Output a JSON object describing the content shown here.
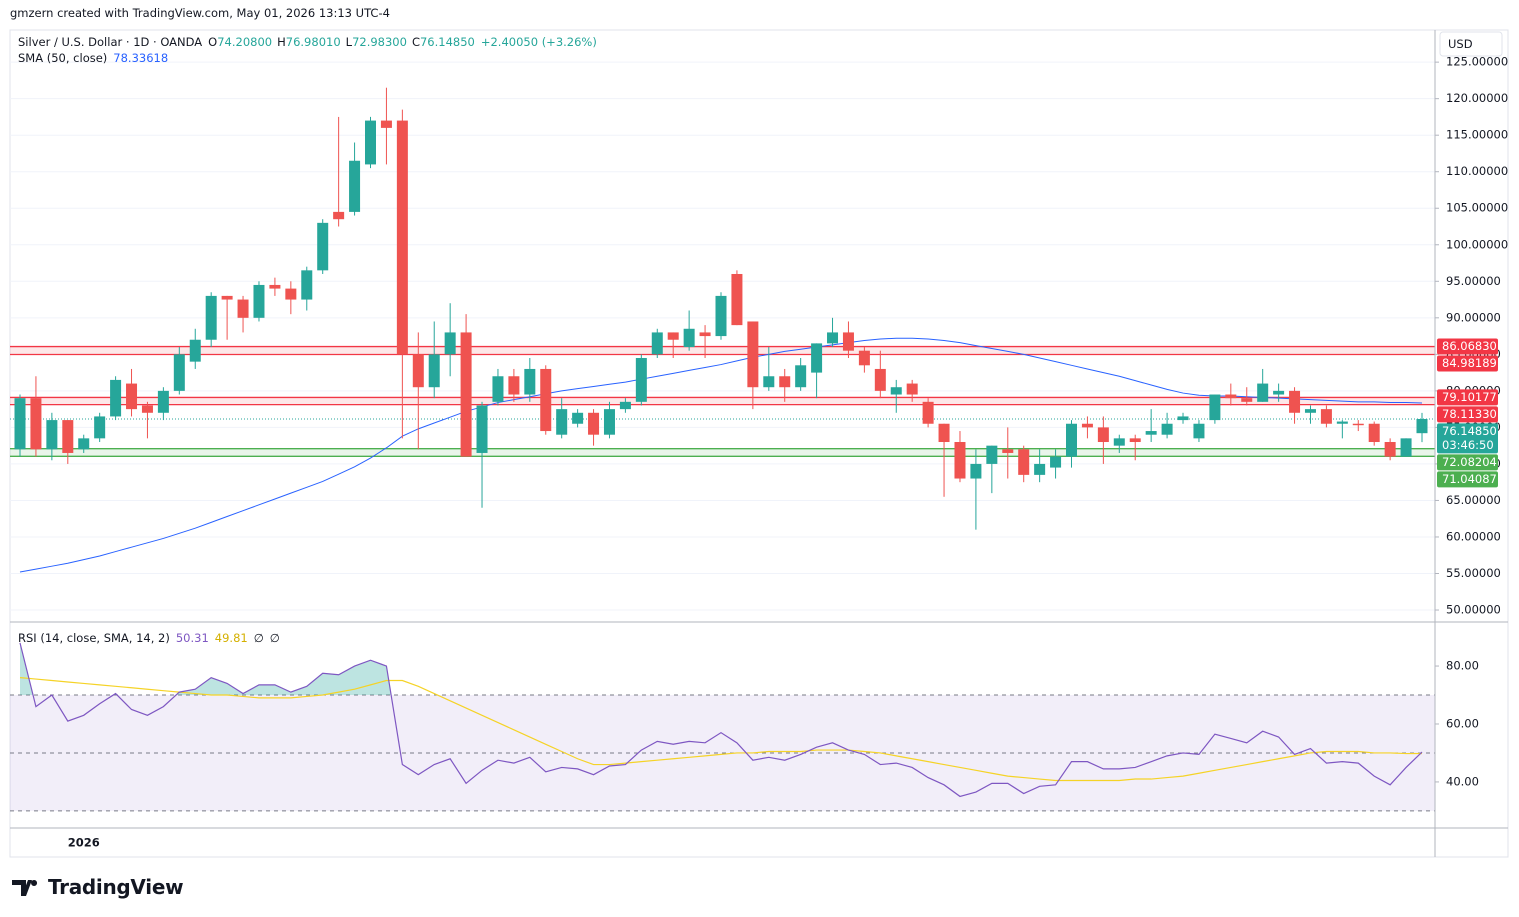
{
  "header": "gmzern created with TradingView.com, May 01, 2026 13:13 UTC-4",
  "footer": {
    "brand": "TradingView"
  },
  "chart_data": [
    {
      "type": "candlestick",
      "title": "Silver / U.S. Dollar · 1D · OANDA",
      "ohlc_legend": [
        {
          "key": "O",
          "value": "74.20800"
        },
        {
          "key": "H",
          "value": "76.98010"
        },
        {
          "key": "L",
          "value": "72.98300"
        },
        {
          "key": "C",
          "value": "76.14850"
        }
      ],
      "change": "+2.40050 (+3.26%)",
      "currency": "USD",
      "categories": [
        null,
        null,
        null,
        null,
        "2026",
        null,
        null,
        null,
        null,
        null,
        null,
        null,
        null,
        null,
        null,
        null,
        null,
        null,
        null,
        null,
        null,
        null,
        null,
        null,
        null,
        null,
        null,
        null,
        null,
        null,
        null,
        null,
        null,
        null,
        null,
        null,
        null,
        null,
        null,
        null,
        null,
        null,
        null,
        null,
        null,
        null,
        null,
        null,
        null,
        null,
        null,
        null,
        null,
        null,
        null,
        null,
        null,
        null,
        null,
        null,
        null,
        null,
        null,
        null,
        null,
        null,
        null,
        null,
        null,
        null,
        null,
        null,
        null,
        null,
        null,
        null,
        null,
        null,
        null,
        null,
        null,
        null,
        null,
        null,
        null,
        null,
        null,
        null,
        null
      ],
      "up_color": "#26a69a",
      "down_color": "#ef5350",
      "ohlc": {
        "open": [
          72,
          79,
          72,
          76,
          72,
          73.5,
          76.5,
          81,
          78,
          77,
          80,
          84,
          87,
          93,
          92.5,
          90,
          94.5,
          94,
          92.5,
          96.5,
          104.5,
          104.5,
          111,
          117,
          117,
          85,
          80.5,
          85,
          88,
          71.5,
          78.5,
          82,
          79.5,
          83,
          74,
          75.5,
          77,
          74,
          77.5,
          78.5,
          85,
          88,
          86,
          88,
          87.5,
          96,
          89.5,
          80.5,
          82,
          80.5,
          82.5,
          86.5,
          88,
          85.5,
          83,
          79.5,
          81,
          78.5,
          75.5,
          73,
          68,
          70,
          72,
          72,
          68.5,
          69.5,
          71,
          75.5,
          75,
          72.5,
          73.5,
          74,
          74,
          76,
          73.5,
          76,
          79.5,
          79,
          78.5,
          79.5,
          80,
          77,
          77.5,
          75.5,
          75.5,
          75.5,
          73,
          71,
          74.208
        ],
        "high": [
          79.5,
          82,
          77,
          76,
          74,
          77,
          82,
          83,
          78.5,
          80.5,
          86,
          88.5,
          93.5,
          93,
          93,
          95,
          95.5,
          95,
          97,
          103.5,
          117.5,
          114,
          117.5,
          121.5,
          118.5,
          88,
          89.5,
          92,
          90.5,
          78.5,
          83,
          83,
          84.5,
          83.5,
          79,
          77.5,
          77.5,
          78.5,
          79,
          85,
          88.5,
          88,
          91,
          89,
          93.5,
          96.5,
          89.5,
          86,
          83,
          84.5,
          86.5,
          90,
          89.5,
          86,
          85.5,
          81.5,
          81.5,
          79,
          75.5,
          74.5,
          72,
          72.5,
          75,
          72.5,
          72,
          72,
          76,
          76.5,
          76.5,
          74,
          74,
          77.5,
          77,
          77,
          76,
          79.5,
          81,
          80.5,
          83,
          81,
          80.5,
          78,
          78,
          76,
          76,
          75.8,
          73.5,
          73.5,
          76.9801
        ],
        "low": [
          71,
          71,
          70.5,
          70,
          71.5,
          73,
          76,
          76.5,
          73.5,
          76,
          79.5,
          83,
          86,
          87,
          88,
          89.5,
          93,
          90.5,
          91,
          96,
          102.5,
          104,
          110.5,
          111,
          73.5,
          72,
          79,
          82,
          71,
          64,
          78,
          78.5,
          78.5,
          74,
          73.5,
          75,
          72.5,
          73.5,
          77,
          78,
          84.5,
          84.5,
          85.5,
          84.5,
          87,
          89,
          77.5,
          80,
          78.5,
          80,
          79,
          86,
          84.5,
          82.5,
          79,
          77,
          78.5,
          75,
          65.5,
          67.5,
          61,
          66,
          68,
          67.5,
          67.5,
          68,
          69.5,
          73.5,
          70,
          71.5,
          70.5,
          73,
          73.5,
          75.5,
          73,
          75.5,
          78,
          78,
          78.5,
          78.5,
          75.5,
          75.5,
          75,
          73.5,
          74.5,
          72.5,
          70.5,
          71,
          72.983
        ],
        "close": [
          79,
          72,
          76,
          71.5,
          73.5,
          76.5,
          81.5,
          77.5,
          77,
          80,
          85,
          87,
          93,
          92.5,
          90,
          94.5,
          94,
          92.5,
          96.5,
          103,
          103.5,
          111.5,
          117,
          116,
          85,
          80.5,
          85,
          88,
          71,
          78,
          82,
          79.5,
          83,
          74.5,
          77.5,
          77,
          74,
          77.5,
          78.5,
          84.5,
          88,
          87,
          88.5,
          87.5,
          93,
          89,
          80.5,
          82,
          80.5,
          83.5,
          86.5,
          88,
          85.5,
          83.5,
          80,
          80.5,
          79.5,
          75.5,
          73,
          68,
          70,
          72.5,
          71.5,
          68.5,
          70,
          71,
          75.5,
          75,
          73,
          73.5,
          73,
          74.5,
          75.5,
          76.5,
          75.5,
          79.5,
          79,
          78.5,
          81,
          80,
          77,
          77.5,
          75.5,
          75.8,
          75.3,
          73,
          71,
          73.5,
          76.1485
        ]
      },
      "overlays": [
        {
          "name": "SMA (50, close)",
          "color": "#2962ff",
          "last_label": "78.33618",
          "values": [
            55.2,
            55.6,
            56,
            56.4,
            56.9,
            57.4,
            58,
            58.6,
            59.2,
            59.8,
            60.5,
            61.2,
            62,
            62.8,
            63.6,
            64.4,
            65.2,
            66,
            66.8,
            67.6,
            68.6,
            69.6,
            70.8,
            72.2,
            73.8,
            74.8,
            75.6,
            76.4,
            77.2,
            77.8,
            78.4,
            78.8,
            79.2,
            79.6,
            80,
            80.3,
            80.6,
            80.9,
            81.2,
            81.6,
            82,
            82.4,
            82.8,
            83.2,
            83.6,
            84.1,
            84.6,
            85,
            85.4,
            85.7,
            86,
            86.3,
            86.6,
            86.9,
            87.1,
            87.2,
            87.2,
            87.1,
            86.9,
            86.6,
            86.2,
            85.8,
            85.4,
            85,
            84.5,
            84,
            83.5,
            83,
            82.5,
            82,
            81.4,
            80.8,
            80.2,
            79.7,
            79.4,
            79.3,
            79.3,
            79.2,
            79.1,
            79,
            78.9,
            78.8,
            78.7,
            78.6,
            78.5,
            78.5,
            78.4,
            78.4,
            78.34
          ]
        }
      ],
      "zones": [
        {
          "color": "#f23645",
          "bounds": [
            {
              "value": 86.0683,
              "label": "86.06830"
            },
            {
              "value": 84.98189,
              "label": "84.98189"
            }
          ]
        },
        {
          "color": "#f23645",
          "bounds": [
            {
              "value": 79.10177,
              "label": "79.10177"
            },
            {
              "value": 78.1133,
              "label": "78.11330"
            }
          ]
        },
        {
          "color": "#4caf50",
          "bounds": [
            {
              "value": 72.08204,
              "label": "72.08204"
            },
            {
              "value": 71.04087,
              "label": "71.04087"
            }
          ]
        }
      ],
      "last_price": {
        "value": 76.1485,
        "label": "76.14850",
        "countdown": "03:46:50",
        "color": "#26a69a"
      },
      "ylim": [
        48.36,
        129.4
      ],
      "yticks": [
        {
          "value": 50,
          "label": "50.00000"
        },
        {
          "value": 55,
          "label": "55.00000"
        },
        {
          "value": 60,
          "label": "60.00000"
        },
        {
          "value": 65,
          "label": "65.00000"
        },
        {
          "value": 70,
          "label": "70.00000"
        },
        {
          "value": 75,
          "label": "75.00000"
        },
        {
          "value": 80,
          "label": "80.00000"
        },
        {
          "value": 85,
          "label": "85.00000"
        },
        {
          "value": 90,
          "label": "90.00000"
        },
        {
          "value": 95,
          "label": "95.00000"
        },
        {
          "value": 100,
          "label": "100.00000"
        },
        {
          "value": 105,
          "label": "105.00000"
        },
        {
          "value": 110,
          "label": "110.00000"
        },
        {
          "value": 115,
          "label": "115.00000"
        },
        {
          "value": 120,
          "label": "120.00000"
        },
        {
          "value": 125,
          "label": "125.00000"
        }
      ],
      "grid": true
    },
    {
      "type": "line",
      "title": "RSI (14, close, SMA, 14, 2)",
      "legend_values": [
        "50.31",
        "49.81",
        "∅",
        "∅"
      ],
      "series": [
        {
          "name": "RSI",
          "color": "#7e57c2",
          "values": [
            88,
            66,
            70,
            61,
            63,
            67,
            70.5,
            65,
            63,
            66,
            71,
            72,
            76,
            74,
            70.5,
            73.5,
            73.5,
            71,
            73,
            77.5,
            77,
            80,
            82,
            80,
            46,
            42.5,
            46,
            48,
            39.5,
            44,
            47.5,
            46.5,
            48.5,
            43.5,
            45,
            44.5,
            42.5,
            45.5,
            46,
            51,
            54,
            53,
            54,
            53.5,
            57,
            53.5,
            47.5,
            48.5,
            47.5,
            49.5,
            52,
            53.5,
            51,
            49.5,
            46,
            46.5,
            45,
            41.5,
            39,
            35,
            36.5,
            39.5,
            39.5,
            36,
            38.5,
            39,
            47,
            47,
            44.5,
            44.5,
            45,
            47,
            49,
            50,
            49.5,
            56.5,
            55,
            53.5,
            57.5,
            55.5,
            49.5,
            51.5,
            46.5,
            47,
            46.5,
            42,
            39,
            45,
            50.31
          ]
        },
        {
          "name": "RSI-based MA",
          "color": "#f5d327",
          "values": [
            76,
            75.5,
            75,
            74.5,
            74,
            73.5,
            73,
            72.5,
            72,
            71.5,
            71,
            70.5,
            70,
            70,
            69.5,
            69,
            69,
            69,
            69.5,
            70,
            71,
            72,
            73.5,
            75,
            75,
            73,
            70.5,
            68,
            65.5,
            63,
            60.5,
            58,
            55.5,
            53,
            50.5,
            48,
            46,
            46,
            46.5,
            47,
            47.5,
            48,
            48.5,
            49,
            49.5,
            50,
            50,
            50.5,
            50.5,
            50.5,
            51,
            51,
            51,
            50.5,
            50,
            49,
            48,
            47,
            46,
            45,
            44,
            43,
            42,
            41.5,
            41,
            40.5,
            40.5,
            40.5,
            40.5,
            40.5,
            41,
            41,
            41.5,
            42,
            43,
            44,
            45,
            46,
            47,
            48,
            49,
            50,
            50.5,
            50.5,
            50.5,
            50,
            50,
            49.8,
            49.81
          ]
        }
      ],
      "bands": [
        70,
        50,
        30
      ],
      "overbought_fill": "#26a69a",
      "ylim": [
        24.1,
        95.2
      ],
      "yticks": [
        {
          "value": 40,
          "label": "40.00"
        },
        {
          "value": 60,
          "label": "60.00"
        },
        {
          "value": 80,
          "label": "80.00"
        }
      ]
    }
  ]
}
